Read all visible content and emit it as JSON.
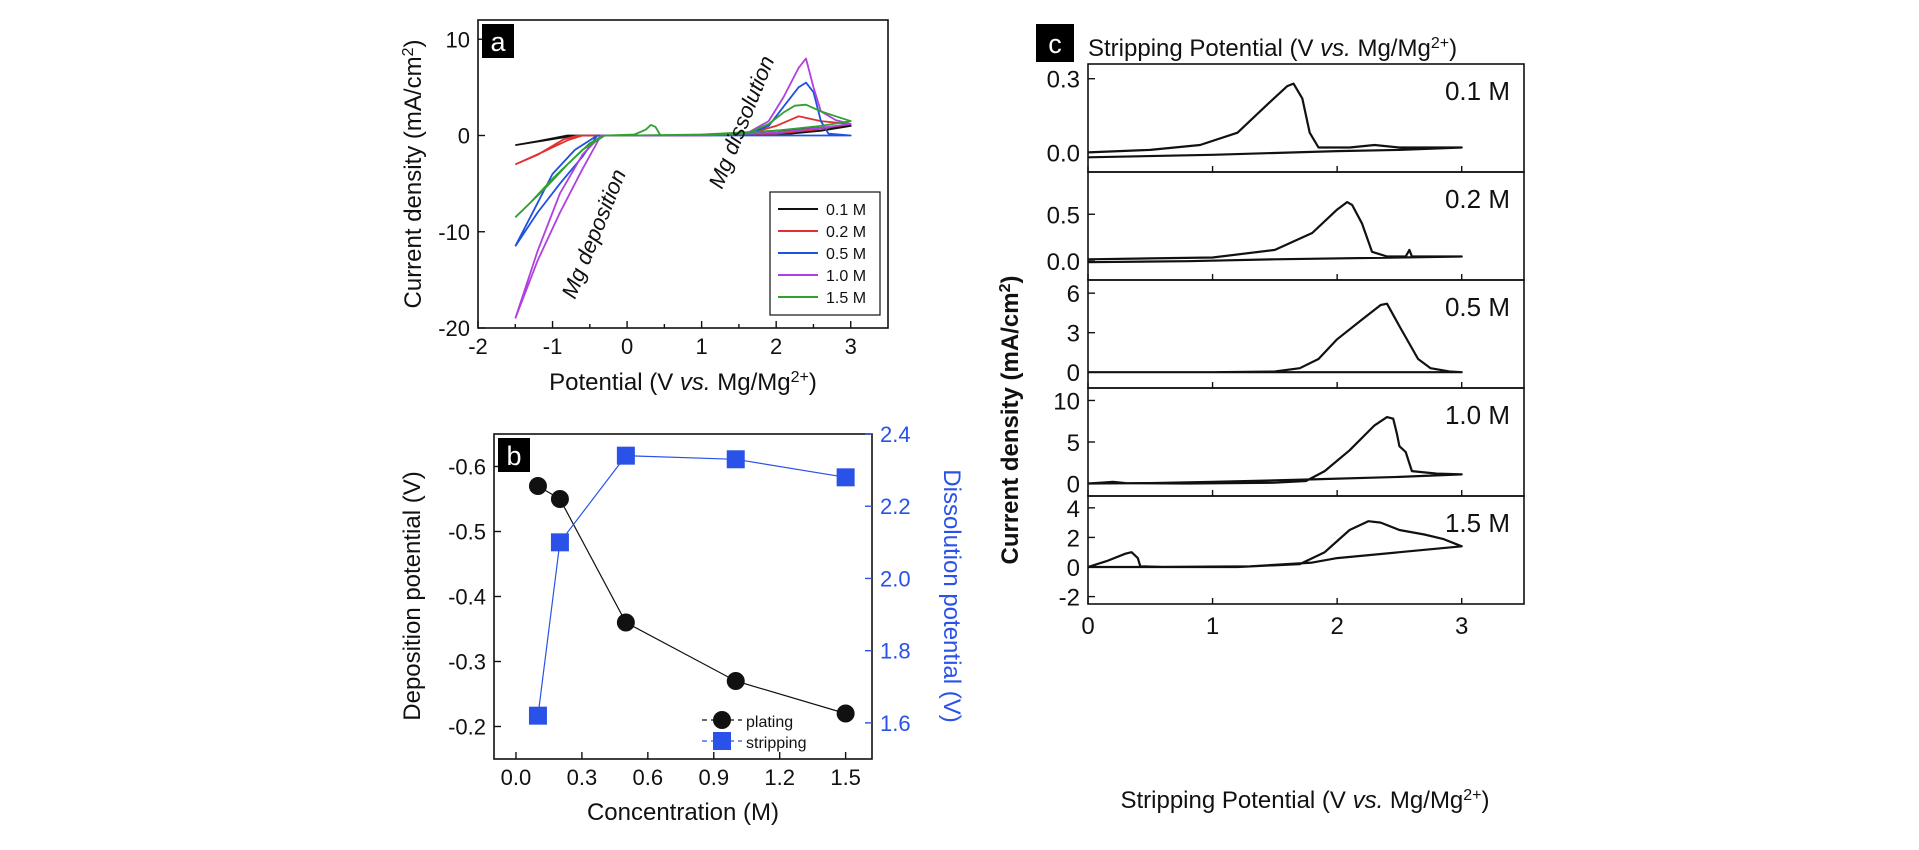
{
  "chart_data": [
    {
      "panel_label": "a",
      "type": "line",
      "xlabel": "Potential (V vs. Mg/Mg2+)",
      "ylabel": "Current density (mA/cm2)",
      "xlim": [
        -2,
        3.5
      ],
      "ylim": [
        -20,
        12
      ],
      "x_ticks": [
        "-2",
        "-1",
        "0",
        "1",
        "2",
        "3"
      ],
      "y_ticks": [
        "-20",
        "-10",
        "0",
        "10"
      ],
      "legend_position": "bottom-right",
      "annotations": [
        "Mg deposition",
        "Mg dissolution"
      ],
      "series": [
        {
          "name": "0.1 M",
          "color": "#111111",
          "points": [
            [
              -1.5,
              -1.0
            ],
            [
              -1.1,
              -0.5
            ],
            [
              -0.7,
              0
            ],
            [
              -0.5,
              0
            ],
            [
              0.5,
              0
            ],
            [
              1.3,
              0.1
            ],
            [
              1.8,
              0.4
            ],
            [
              2.2,
              0.6
            ],
            [
              2.6,
              0.8
            ],
            [
              3.0,
              1.0
            ],
            [
              2.6,
              0.5
            ],
            [
              2.2,
              0.2
            ],
            [
              1.5,
              0.05
            ],
            [
              0.5,
              0
            ],
            [
              -0.5,
              0
            ],
            [
              -0.8,
              0
            ],
            [
              -1.2,
              -0.6
            ],
            [
              -1.5,
              -1.0
            ]
          ]
        },
        {
          "name": "0.2 M",
          "color": "#e03030",
          "points": [
            [
              -1.5,
              -3.0
            ],
            [
              -1.1,
              -1.6
            ],
            [
              -0.8,
              -0.5
            ],
            [
              -0.6,
              0
            ],
            [
              0.5,
              0
            ],
            [
              1.6,
              0.1
            ],
            [
              2.0,
              1.0
            ],
            [
              2.3,
              2.0
            ],
            [
              2.6,
              1.5
            ],
            [
              3.0,
              1.2
            ],
            [
              2.5,
              0.6
            ],
            [
              2.0,
              0.2
            ],
            [
              1.5,
              0.05
            ],
            [
              0,
              0
            ],
            [
              -0.65,
              0
            ],
            [
              -0.85,
              -0.4
            ],
            [
              -1.2,
              -2.0
            ],
            [
              -1.5,
              -3.0
            ]
          ]
        },
        {
          "name": "0.5 M",
          "color": "#2050e0",
          "points": [
            [
              -1.5,
              -11.5
            ],
            [
              -1.2,
              -8.0
            ],
            [
              -0.9,
              -5.0
            ],
            [
              -0.6,
              -2.2
            ],
            [
              -0.4,
              0
            ],
            [
              0.5,
              0
            ],
            [
              1.6,
              0.1
            ],
            [
              1.9,
              1.0
            ],
            [
              2.1,
              3.0
            ],
            [
              2.3,
              5.0
            ],
            [
              2.4,
              5.5
            ],
            [
              2.5,
              4.5
            ],
            [
              2.6,
              1.5
            ],
            [
              2.7,
              0.2
            ],
            [
              3.0,
              0
            ],
            [
              2.6,
              0
            ],
            [
              1.5,
              0
            ],
            [
              0,
              0
            ],
            [
              -0.4,
              0
            ],
            [
              -0.7,
              -1.5
            ],
            [
              -1.0,
              -4.0
            ],
            [
              -1.3,
              -8.5
            ],
            [
              -1.5,
              -11.5
            ]
          ]
        },
        {
          "name": "1.0 M",
          "color": "#b040e0",
          "points": [
            [
              -1.5,
              -19.0
            ],
            [
              -1.2,
              -13.0
            ],
            [
              -0.9,
              -8.0
            ],
            [
              -0.6,
              -3.5
            ],
            [
              -0.35,
              0
            ],
            [
              0.5,
              0
            ],
            [
              1.6,
              0.2
            ],
            [
              1.9,
              1.5
            ],
            [
              2.1,
              4.0
            ],
            [
              2.3,
              7.0
            ],
            [
              2.4,
              8.0
            ],
            [
              2.5,
              5.0
            ],
            [
              2.6,
              2.5
            ],
            [
              2.8,
              1.6
            ],
            [
              3.0,
              1.2
            ],
            [
              2.6,
              0.8
            ],
            [
              2.0,
              0.3
            ],
            [
              1.0,
              0
            ],
            [
              0,
              0
            ],
            [
              -0.35,
              0
            ],
            [
              -0.6,
              -2.0
            ],
            [
              -0.9,
              -6.0
            ],
            [
              -1.2,
              -12.0
            ],
            [
              -1.5,
              -19.0
            ]
          ]
        },
        {
          "name": "1.5 M",
          "color": "#30a030",
          "points": [
            [
              -1.5,
              -8.5
            ],
            [
              -1.1,
              -5.5
            ],
            [
              -0.8,
              -3.0
            ],
            [
              -0.5,
              -0.8
            ],
            [
              -0.3,
              0
            ],
            [
              0.1,
              0.1
            ],
            [
              0.25,
              0.6
            ],
            [
              0.32,
              1.1
            ],
            [
              0.38,
              0.9
            ],
            [
              0.45,
              0
            ],
            [
              1.6,
              0.2
            ],
            [
              1.9,
              1.2
            ],
            [
              2.1,
              2.4
            ],
            [
              2.25,
              3.1
            ],
            [
              2.4,
              3.2
            ],
            [
              2.6,
              2.5
            ],
            [
              2.8,
              2.0
            ],
            [
              3.0,
              1.5
            ],
            [
              2.6,
              1.0
            ],
            [
              2.0,
              0.5
            ],
            [
              1.0,
              0.1
            ],
            [
              0,
              0
            ],
            [
              -0.3,
              0
            ],
            [
              -0.6,
              -1.5
            ],
            [
              -1.0,
              -4.5
            ],
            [
              -1.3,
              -7.0
            ],
            [
              -1.5,
              -8.5
            ]
          ]
        }
      ]
    },
    {
      "panel_label": "b",
      "type": "scatter",
      "xlabel": "Concentration (M)",
      "ylabel": "Deposition potential (V)",
      "y2label": "Dissolution potential (V)",
      "xlim": [
        -0.1,
        1.62
      ],
      "ylim": [
        -0.15,
        -0.65
      ],
      "y2lim": [
        1.5,
        2.4
      ],
      "x_ticks": [
        "0.0",
        "0.3",
        "0.6",
        "0.9",
        "1.2",
        "1.5"
      ],
      "y_ticks": [
        "-0.6",
        "-0.5",
        "-0.4",
        "-0.3",
        "-0.2"
      ],
      "y2_ticks": [
        "1.6",
        "1.8",
        "2.0",
        "2.2",
        "2.4"
      ],
      "legend_position": "bottom-right",
      "series": [
        {
          "name": "plating",
          "axis": "left",
          "color": "#111111",
          "marker": "circle",
          "x": [
            0.1,
            0.2,
            0.5,
            1.0,
            1.5
          ],
          "y": [
            -0.57,
            -0.55,
            -0.36,
            -0.27,
            -0.22
          ]
        },
        {
          "name": "stripping",
          "axis": "right",
          "color": "#2a52e8",
          "marker": "square",
          "x": [
            0.1,
            0.2,
            0.5,
            1.0,
            1.5
          ],
          "y": [
            1.62,
            2.1,
            2.34,
            2.33,
            2.28
          ]
        }
      ]
    },
    {
      "panel_label": "c",
      "type": "line",
      "title": "Stripping Potential (V vs. Mg/Mg2+)",
      "xlabel": "Stripping Potential (V vs. Mg/Mg2+)",
      "ylabel": "Current density (mA/cm2)",
      "xlim": [
        0,
        3.5
      ],
      "x_ticks": [
        "0",
        "1",
        "2",
        "3"
      ],
      "color": "#111111",
      "subplots": [
        {
          "label": "0.1 M",
          "ylim": [
            -0.08,
            0.36
          ],
          "y_ticks": [
            "0.0",
            "0.3"
          ],
          "points": [
            [
              0,
              0.0
            ],
            [
              0.5,
              0.01
            ],
            [
              0.9,
              0.03
            ],
            [
              1.2,
              0.08
            ],
            [
              1.45,
              0.2
            ],
            [
              1.6,
              0.27
            ],
            [
              1.65,
              0.28
            ],
            [
              1.72,
              0.22
            ],
            [
              1.78,
              0.08
            ],
            [
              1.85,
              0.02
            ],
            [
              2.1,
              0.02
            ],
            [
              2.3,
              0.03
            ],
            [
              2.5,
              0.02
            ],
            [
              2.8,
              0.02
            ],
            [
              3.0,
              0.02
            ],
            [
              2.5,
              0.01
            ],
            [
              2.0,
              0.005
            ],
            [
              1.0,
              -0.01
            ],
            [
              0,
              -0.02
            ]
          ]
        },
        {
          "label": "0.2 M",
          "ylim": [
            -0.2,
            0.95
          ],
          "y_ticks": [
            "0.0",
            "0.5"
          ],
          "points": [
            [
              0,
              0.02
            ],
            [
              0.5,
              0.03
            ],
            [
              1.0,
              0.04
            ],
            [
              1.5,
              0.12
            ],
            [
              1.8,
              0.3
            ],
            [
              2.0,
              0.55
            ],
            [
              2.08,
              0.63
            ],
            [
              2.12,
              0.6
            ],
            [
              2.2,
              0.4
            ],
            [
              2.28,
              0.1
            ],
            [
              2.4,
              0.05
            ],
            [
              2.55,
              0.05
            ],
            [
              2.58,
              0.12
            ],
            [
              2.6,
              0.05
            ],
            [
              3.0,
              0.05
            ],
            [
              2.5,
              0.04
            ],
            [
              1.5,
              0.02
            ],
            [
              0.8,
              0.0
            ],
            [
              0,
              -0.01
            ]
          ]
        },
        {
          "label": "0.5 M",
          "ylim": [
            -1.2,
            7.0
          ],
          "y_ticks": [
            "0",
            "3",
            "6"
          ],
          "points": [
            [
              0,
              0
            ],
            [
              1.0,
              0
            ],
            [
              1.5,
              0.05
            ],
            [
              1.7,
              0.3
            ],
            [
              1.85,
              1.0
            ],
            [
              2.0,
              2.5
            ],
            [
              2.2,
              4.0
            ],
            [
              2.35,
              5.1
            ],
            [
              2.4,
              5.2
            ],
            [
              2.5,
              3.5
            ],
            [
              2.65,
              1.0
            ],
            [
              2.75,
              0.3
            ],
            [
              2.9,
              0.05
            ],
            [
              3.0,
              0
            ],
            [
              2.5,
              0
            ],
            [
              1.0,
              0
            ],
            [
              0,
              0
            ]
          ]
        },
        {
          "label": "1.0 M",
          "ylim": [
            -1.5,
            11.5
          ],
          "y_ticks": [
            "0",
            "5",
            "10"
          ],
          "points": [
            [
              0,
              0
            ],
            [
              0.1,
              0.1
            ],
            [
              0.2,
              0.2
            ],
            [
              0.3,
              0.05
            ],
            [
              0.8,
              0.0
            ],
            [
              1.5,
              0.1
            ],
            [
              1.75,
              0.3
            ],
            [
              1.9,
              1.5
            ],
            [
              2.1,
              4.0
            ],
            [
              2.3,
              7.0
            ],
            [
              2.4,
              8.0
            ],
            [
              2.45,
              7.8
            ],
            [
              2.48,
              6.0
            ],
            [
              2.5,
              4.5
            ],
            [
              2.55,
              3.8
            ],
            [
              2.6,
              1.5
            ],
            [
              2.8,
              1.2
            ],
            [
              3.0,
              1.1
            ],
            [
              2.5,
              0.8
            ],
            [
              1.8,
              0.5
            ],
            [
              1.0,
              0.2
            ],
            [
              0.5,
              0.05
            ],
            [
              0,
              0
            ]
          ]
        },
        {
          "label": "1.5 M",
          "ylim": [
            -2.5,
            4.8
          ],
          "y_ticks": [
            "-2",
            "0",
            "2",
            "4"
          ],
          "points": [
            [
              0,
              0
            ],
            [
              0.15,
              0.4
            ],
            [
              0.3,
              0.9
            ],
            [
              0.35,
              1.0
            ],
            [
              0.4,
              0.6
            ],
            [
              0.42,
              0.05
            ],
            [
              0.6,
              0.0
            ],
            [
              1.2,
              0.0
            ],
            [
              1.7,
              0.2
            ],
            [
              1.9,
              1.0
            ],
            [
              2.1,
              2.5
            ],
            [
              2.25,
              3.1
            ],
            [
              2.35,
              3.0
            ],
            [
              2.5,
              2.5
            ],
            [
              2.7,
              2.2
            ],
            [
              2.85,
              1.9
            ],
            [
              3.0,
              1.4
            ],
            [
              2.5,
              1.0
            ],
            [
              2.0,
              0.6
            ],
            [
              1.8,
              0.3
            ],
            [
              1.3,
              0.05
            ],
            [
              0.5,
              0.0
            ],
            [
              0,
              0
            ]
          ]
        }
      ]
    }
  ]
}
